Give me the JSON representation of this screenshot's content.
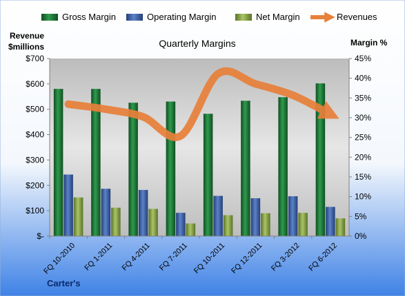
{
  "chart_data": {
    "type": "bar",
    "title": "Quarterly Margins",
    "ylabel_left_line1": "Revenue",
    "ylabel_left_line2": "$millions",
    "ylabel_right": "Margin %",
    "company_label": "Carter's",
    "categories": [
      "FQ 10-2010",
      "FQ 1-2011",
      "FQ 4-2011",
      "FQ 7-2011",
      "FQ 10-2011",
      "FQ 12-2011",
      "FQ 3-2012",
      "FQ 6-2012"
    ],
    "left_axis": {
      "min": 0,
      "max": 700,
      "ticks": [
        0,
        100,
        200,
        300,
        400,
        500,
        600,
        700
      ],
      "tick_labels": [
        "$-",
        "$100",
        "$200",
        "$300",
        "$400",
        "$500",
        "$600",
        "$700"
      ]
    },
    "right_axis": {
      "min": 0,
      "max": 45,
      "ticks": [
        0,
        5,
        10,
        15,
        20,
        25,
        30,
        35,
        40,
        45
      ],
      "tick_labels": [
        "0%",
        "5%",
        "10%",
        "15%",
        "20%",
        "25%",
        "30%",
        "35%",
        "40%",
        "45%"
      ]
    },
    "series": [
      {
        "name": "Gross Margin",
        "kind": "bar",
        "axis": "right",
        "color": "#1f7a3a",
        "values": [
          37.3,
          37.3,
          33.8,
          34.1,
          31.0,
          34.3,
          35.2,
          38.7
        ]
      },
      {
        "name": "Operating Margin",
        "kind": "bar",
        "axis": "right",
        "color": "#3a5fa8",
        "values": [
          15.6,
          12.0,
          11.7,
          5.9,
          10.2,
          9.6,
          10.1,
          7.4
        ]
      },
      {
        "name": "Net Margin",
        "kind": "bar",
        "axis": "right",
        "color": "#8aa648",
        "values": [
          9.8,
          7.2,
          6.9,
          3.2,
          5.3,
          5.8,
          5.9,
          4.5
        ]
      },
      {
        "name": "Revenues",
        "kind": "line",
        "axis": "left",
        "color": "#e8803a",
        "values": [
          520,
          500,
          470,
          395,
          640,
          600,
          555,
          480
        ]
      }
    ],
    "legend_position": "top",
    "grid": false
  }
}
